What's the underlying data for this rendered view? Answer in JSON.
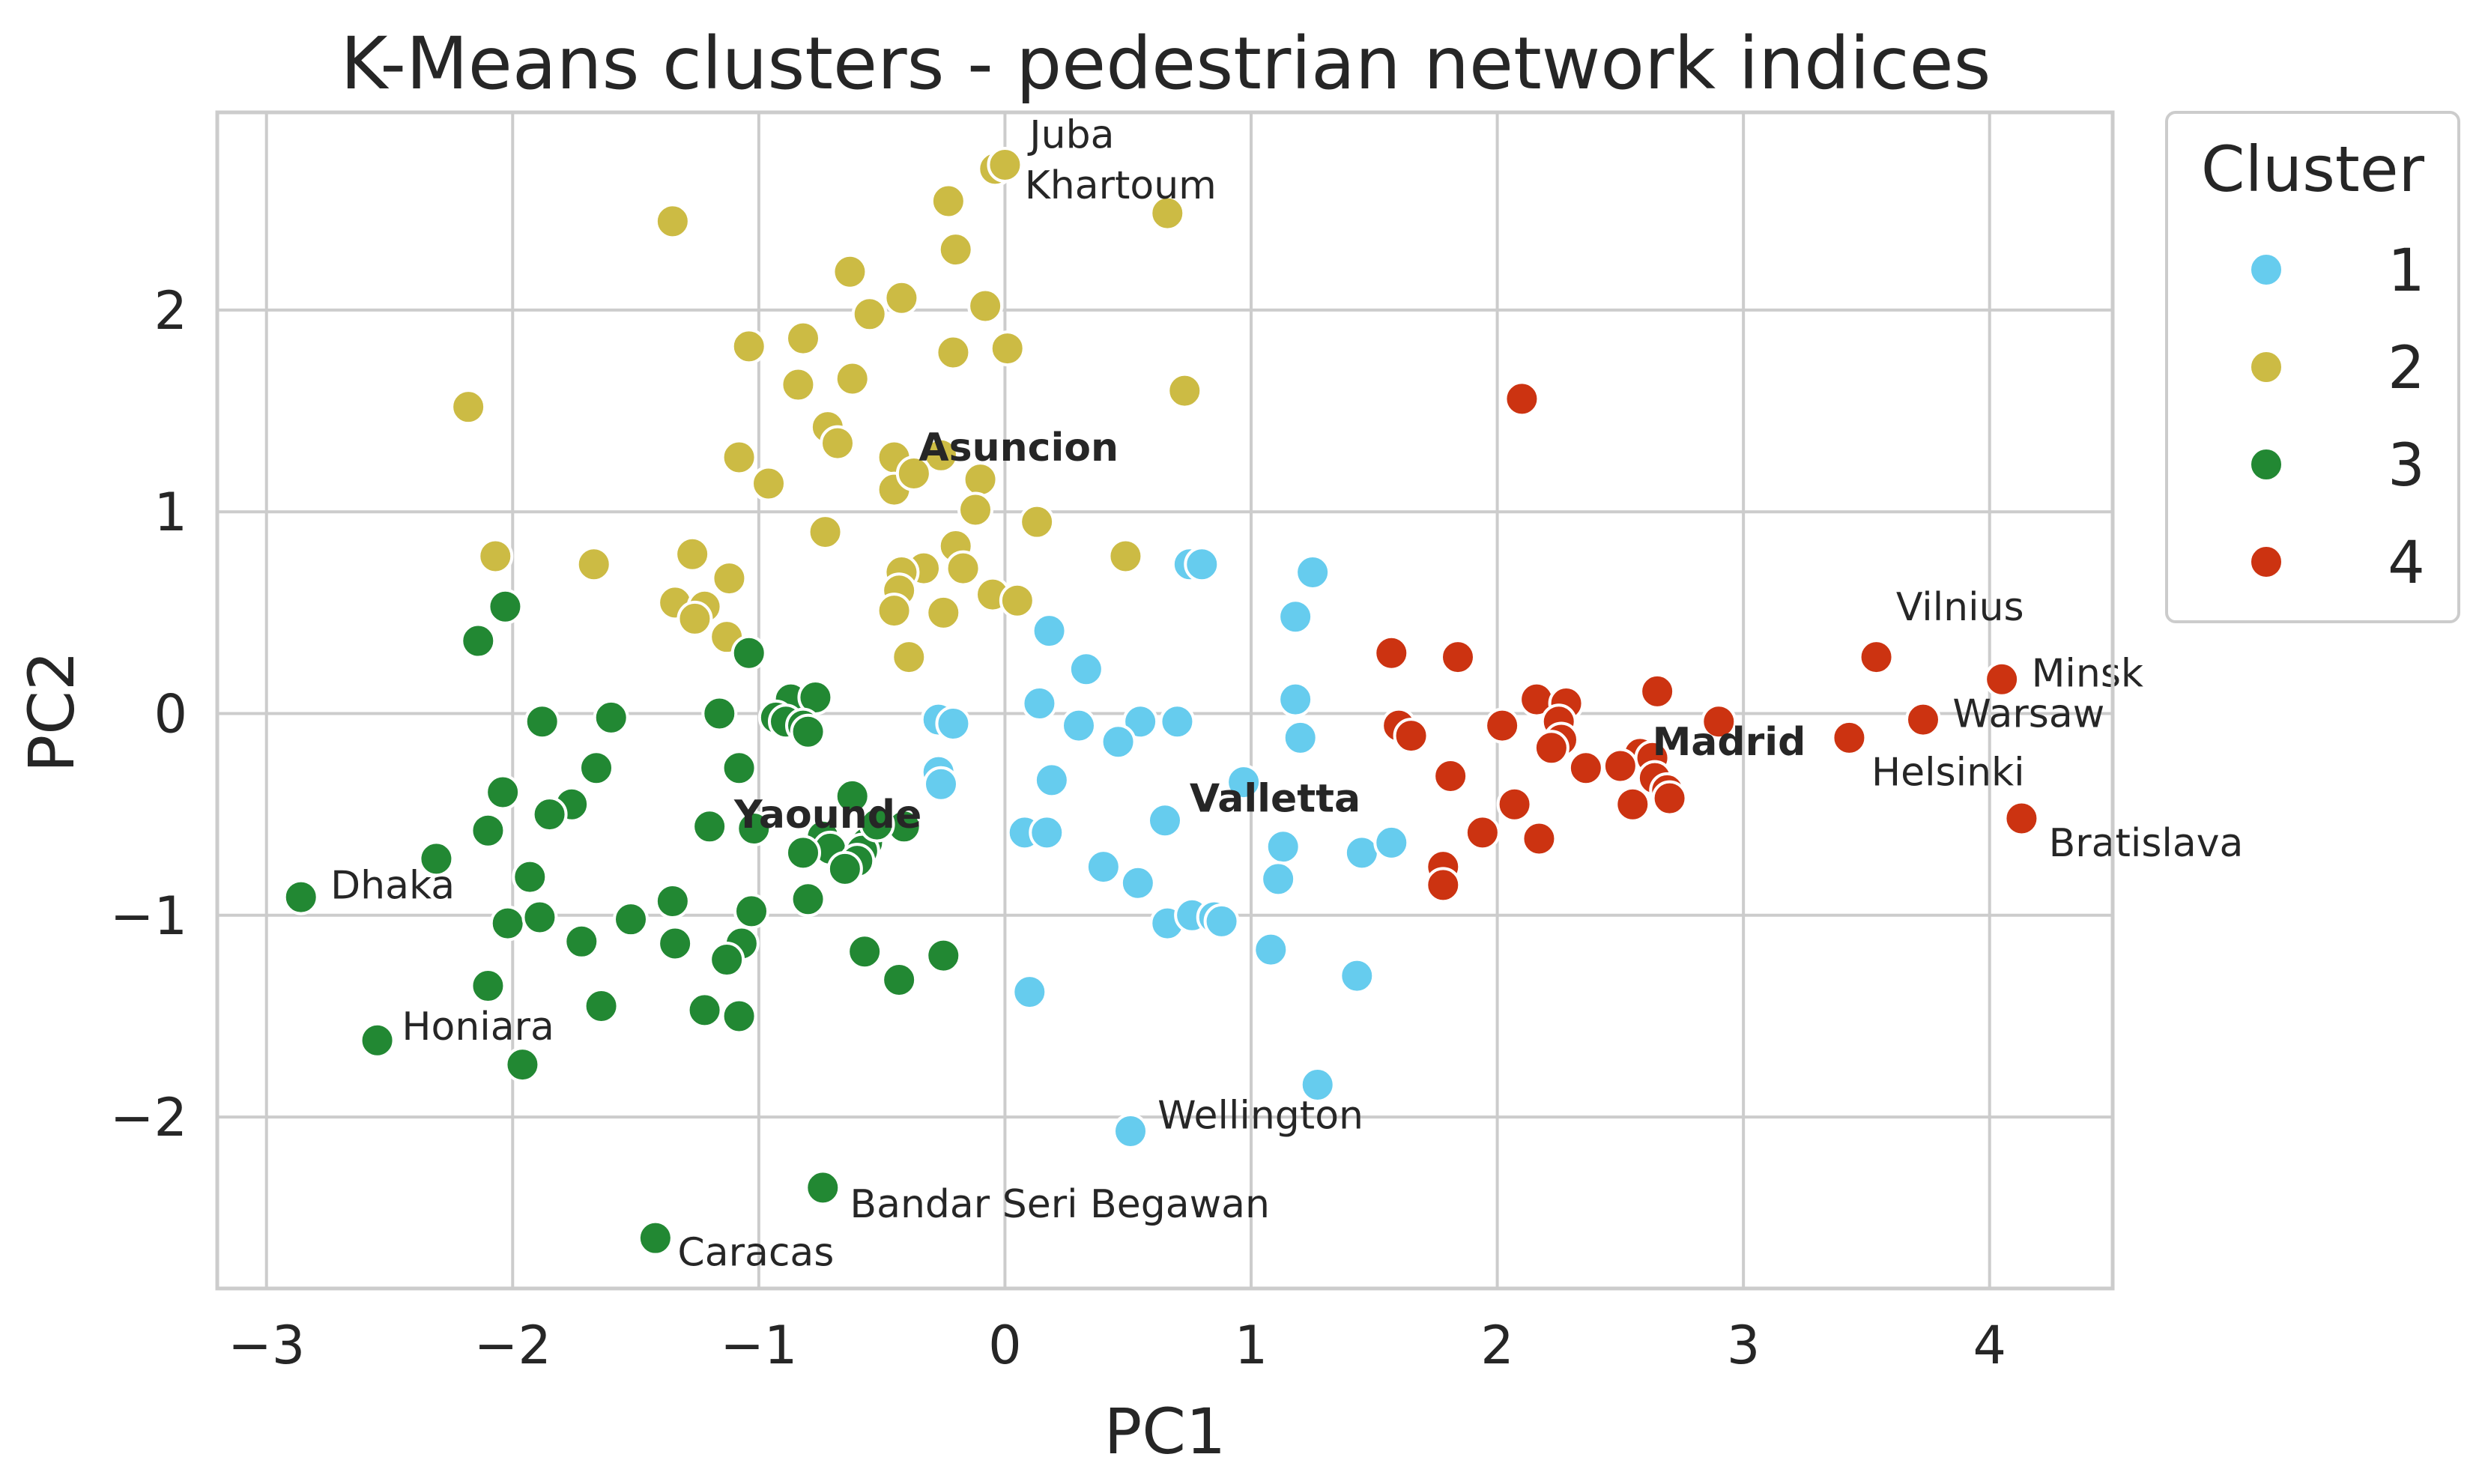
{
  "chart_data": {
    "type": "scatter",
    "title": "K-Means clusters - pedestrian network indices",
    "xlabel": "PC1",
    "ylabel": "PC2",
    "xlim": [
      -3.2,
      4.5
    ],
    "ylim": [
      -2.85,
      2.98
    ],
    "xticks": [
      -3,
      -2,
      -1,
      0,
      1,
      2,
      3,
      4
    ],
    "yticks": [
      -2,
      -1,
      0,
      1,
      2
    ],
    "xtick_labels": [
      "−3",
      "−2",
      "−1",
      "0",
      "1",
      "2",
      "3",
      "4"
    ],
    "ytick_labels": [
      "−2",
      "−1",
      "0",
      "1",
      "2"
    ],
    "grid": true,
    "legend": {
      "title": "Cluster",
      "placement": "outside-top-right",
      "entries": [
        {
          "label": "1",
          "color": "#66CCEE"
        },
        {
          "label": "2",
          "color": "#CCBB44"
        },
        {
          "label": "3",
          "color": "#228833"
        },
        {
          "label": "4",
          "color": "#CC3311"
        }
      ]
    },
    "series": [
      {
        "name": "1",
        "color": "#66CCEE",
        "points": [
          [
            0.75,
            0.74
          ],
          [
            0.8,
            0.74
          ],
          [
            1.25,
            0.7
          ],
          [
            1.18,
            0.48
          ],
          [
            0.18,
            0.41
          ],
          [
            0.33,
            0.22
          ],
          [
            1.18,
            0.07
          ],
          [
            0.14,
            0.05
          ],
          [
            -0.27,
            -0.03
          ],
          [
            -0.21,
            -0.05
          ],
          [
            0.3,
            -0.06
          ],
          [
            0.55,
            -0.04
          ],
          [
            0.7,
            -0.04
          ],
          [
            1.2,
            -0.12
          ],
          [
            0.46,
            -0.14
          ],
          [
            -0.27,
            -0.29
          ],
          [
            -0.26,
            -0.35
          ],
          [
            0.19,
            -0.33
          ],
          [
            0.97,
            -0.34
          ],
          [
            0.65,
            -0.53
          ],
          [
            0.08,
            -0.59
          ],
          [
            0.17,
            -0.59
          ],
          [
            1.13,
            -0.66
          ],
          [
            1.45,
            -0.69
          ],
          [
            1.57,
            -0.64
          ],
          [
            0.4,
            -0.76
          ],
          [
            0.54,
            -0.84
          ],
          [
            1.11,
            -0.82
          ],
          [
            0.66,
            -1.04
          ],
          [
            0.76,
            -1.0
          ],
          [
            0.85,
            -1.01
          ],
          [
            0.88,
            -1.03
          ],
          [
            1.08,
            -1.17
          ],
          [
            1.43,
            -1.3
          ],
          [
            0.1,
            -1.38
          ],
          [
            1.27,
            -1.84
          ],
          [
            0.51,
            -2.07
          ]
        ]
      },
      {
        "name": "2",
        "color": "#CCBB44",
        "points": [
          [
            -0.04,
            2.7
          ],
          [
            0.0,
            2.72
          ],
          [
            0.66,
            2.48
          ],
          [
            -1.35,
            2.44
          ],
          [
            -0.23,
            2.54
          ],
          [
            -0.2,
            2.3
          ],
          [
            -0.63,
            2.19
          ],
          [
            -0.42,
            2.06
          ],
          [
            -0.55,
            1.98
          ],
          [
            -0.08,
            2.02
          ],
          [
            -1.04,
            1.82
          ],
          [
            -0.82,
            1.86
          ],
          [
            -0.21,
            1.79
          ],
          [
            0.01,
            1.81
          ],
          [
            -0.62,
            1.66
          ],
          [
            -0.84,
            1.63
          ],
          [
            0.73,
            1.6
          ],
          [
            -2.18,
            1.52
          ],
          [
            -0.72,
            1.42
          ],
          [
            -0.68,
            1.34
          ],
          [
            -1.08,
            1.27
          ],
          [
            -0.45,
            1.27
          ],
          [
            -0.26,
            1.28
          ],
          [
            -0.96,
            1.14
          ],
          [
            -0.45,
            1.11
          ],
          [
            -0.37,
            1.19
          ],
          [
            -0.1,
            1.16
          ],
          [
            -0.12,
            1.01
          ],
          [
            0.13,
            0.95
          ],
          [
            -0.73,
            0.9
          ],
          [
            -2.07,
            0.78
          ],
          [
            -1.67,
            0.74
          ],
          [
            -1.27,
            0.79
          ],
          [
            -0.2,
            0.83
          ],
          [
            -0.33,
            0.72
          ],
          [
            -0.42,
            0.7
          ],
          [
            -0.17,
            0.72
          ],
          [
            0.49,
            0.78
          ],
          [
            -1.12,
            0.67
          ],
          [
            -0.43,
            0.61
          ],
          [
            -0.05,
            0.59
          ],
          [
            0.05,
            0.56
          ],
          [
            -1.34,
            0.55
          ],
          [
            -1.22,
            0.53
          ],
          [
            -1.26,
            0.47
          ],
          [
            -0.45,
            0.51
          ],
          [
            -0.25,
            0.5
          ],
          [
            -1.13,
            0.38
          ],
          [
            -0.39,
            0.28
          ]
        ]
      },
      {
        "name": "3",
        "color": "#228833",
        "points": [
          [
            -2.03,
            0.53
          ],
          [
            -2.14,
            0.36
          ],
          [
            -1.04,
            0.3
          ],
          [
            -0.87,
            0.07
          ],
          [
            -0.77,
            0.08
          ],
          [
            -0.93,
            -0.02
          ],
          [
            -0.89,
            -0.04
          ],
          [
            -0.82,
            -0.06
          ],
          [
            -0.8,
            -0.09
          ],
          [
            -1.16,
            0.0
          ],
          [
            -1.88,
            -0.04
          ],
          [
            -1.6,
            -0.02
          ],
          [
            -1.66,
            -0.27
          ],
          [
            -1.08,
            -0.27
          ],
          [
            -2.04,
            -0.39
          ],
          [
            -1.76,
            -0.45
          ],
          [
            -1.85,
            -0.5
          ],
          [
            -0.62,
            -0.41
          ],
          [
            -2.1,
            -0.58
          ],
          [
            -2.31,
            -0.72
          ],
          [
            -1.2,
            -0.56
          ],
          [
            -1.02,
            -0.57
          ],
          [
            -0.74,
            -0.61
          ],
          [
            -0.71,
            -0.67
          ],
          [
            -0.56,
            -0.64
          ],
          [
            -0.58,
            -0.68
          ],
          [
            -0.6,
            -0.73
          ],
          [
            -0.65,
            -0.77
          ],
          [
            -0.82,
            -0.69
          ],
          [
            -0.41,
            -0.56
          ],
          [
            -0.52,
            -0.55
          ],
          [
            -1.93,
            -0.81
          ],
          [
            -2.86,
            -0.91
          ],
          [
            -1.35,
            -0.93
          ],
          [
            -0.8,
            -0.92
          ],
          [
            -1.03,
            -0.98
          ],
          [
            -2.02,
            -1.04
          ],
          [
            -1.89,
            -1.01
          ],
          [
            -1.52,
            -1.02
          ],
          [
            -1.72,
            -1.13
          ],
          [
            -1.34,
            -1.14
          ],
          [
            -1.07,
            -1.14
          ],
          [
            -1.13,
            -1.22
          ],
          [
            -0.57,
            -1.18
          ],
          [
            -0.25,
            -1.2
          ],
          [
            -0.43,
            -1.32
          ],
          [
            -2.1,
            -1.35
          ],
          [
            -1.64,
            -1.45
          ],
          [
            -1.22,
            -1.47
          ],
          [
            -1.08,
            -1.5
          ],
          [
            -2.55,
            -1.62
          ],
          [
            -1.96,
            -1.74
          ],
          [
            -0.74,
            -2.35
          ],
          [
            -1.42,
            -2.6
          ]
        ]
      },
      {
        "name": "4",
        "color": "#CC3311",
        "points": [
          [
            2.1,
            1.56
          ],
          [
            1.57,
            0.3
          ],
          [
            1.84,
            0.28
          ],
          [
            3.54,
            0.28
          ],
          [
            4.05,
            0.17
          ],
          [
            2.65,
            0.11
          ],
          [
            2.16,
            0.07
          ],
          [
            2.28,
            0.05
          ],
          [
            3.73,
            -0.03
          ],
          [
            2.9,
            -0.04
          ],
          [
            2.25,
            -0.04
          ],
          [
            2.02,
            -0.06
          ],
          [
            1.6,
            -0.06
          ],
          [
            1.65,
            -0.11
          ],
          [
            2.26,
            -0.13
          ],
          [
            2.22,
            -0.17
          ],
          [
            3.43,
            -0.12
          ],
          [
            2.58,
            -0.2
          ],
          [
            2.63,
            -0.22
          ],
          [
            2.5,
            -0.26
          ],
          [
            2.36,
            -0.27
          ],
          [
            1.81,
            -0.31
          ],
          [
            2.64,
            -0.32
          ],
          [
            2.69,
            -0.38
          ],
          [
            2.7,
            -0.42
          ],
          [
            2.55,
            -0.45
          ],
          [
            2.07,
            -0.45
          ],
          [
            4.13,
            -0.52
          ],
          [
            1.94,
            -0.59
          ],
          [
            2.17,
            -0.62
          ],
          [
            1.78,
            -0.76
          ],
          [
            1.78,
            -0.85
          ]
        ]
      }
    ],
    "annotations": [
      {
        "text": "Juba",
        "x": 0.1,
        "y": 2.87,
        "bold": false
      },
      {
        "text": "Khartoum",
        "x": 0.08,
        "y": 2.62,
        "bold": false
      },
      {
        "text": "Asuncion",
        "x": -0.35,
        "y": 1.32,
        "bold": true
      },
      {
        "text": "Vilnius",
        "x": 3.62,
        "y": 0.53,
        "bold": false
      },
      {
        "text": "Minsk",
        "x": 4.17,
        "y": 0.2,
        "bold": false
      },
      {
        "text": "Warsaw",
        "x": 3.85,
        "y": 0.0,
        "bold": false
      },
      {
        "text": "Madrid",
        "x": 2.63,
        "y": -0.14,
        "bold": true
      },
      {
        "text": "Helsinki",
        "x": 3.52,
        "y": -0.29,
        "bold": false
      },
      {
        "text": "Valletta",
        "x": 0.75,
        "y": -0.42,
        "bold": true
      },
      {
        "text": "Yaounde",
        "x": -1.1,
        "y": -0.5,
        "bold": true
      },
      {
        "text": "Bratislava",
        "x": 4.24,
        "y": -0.64,
        "bold": false
      },
      {
        "text": "Dhaka",
        "x": -2.74,
        "y": -0.85,
        "bold": false
      },
      {
        "text": "Honiara",
        "x": -2.45,
        "y": -1.55,
        "bold": false
      },
      {
        "text": "Wellington",
        "x": 0.62,
        "y": -1.99,
        "bold": false
      },
      {
        "text": "Bandar Seri Begawan",
        "x": -0.63,
        "y": -2.43,
        "bold": false
      },
      {
        "text": "Caracas",
        "x": -1.33,
        "y": -2.67,
        "bold": false
      }
    ]
  }
}
